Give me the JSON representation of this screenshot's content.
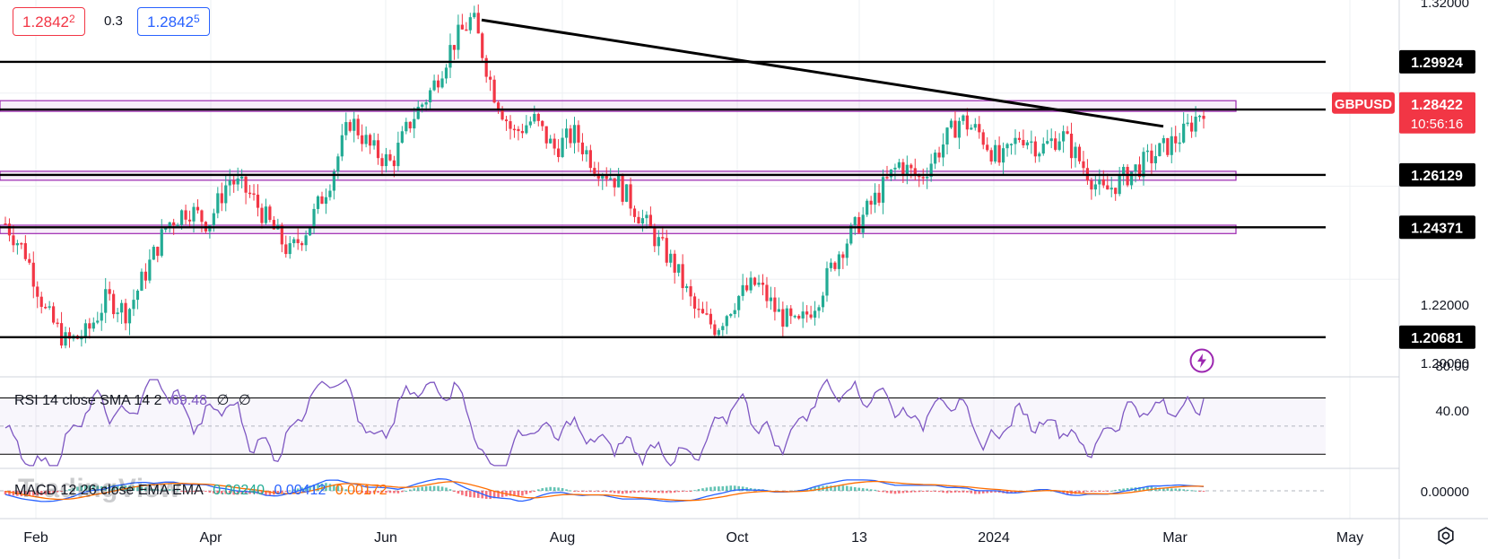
{
  "quote": {
    "bid": "1.2842",
    "bid_sup": "2",
    "spread": "0.3",
    "ask": "1.2842",
    "ask_sup": "5"
  },
  "symbol": {
    "name": "GBPUSD",
    "price": "1.28422",
    "countdown": "10:56:16"
  },
  "levels": [
    "1.29924",
    "1.28323",
    "1.26129",
    "1.24371",
    "1.20681"
  ],
  "rsi_legend": {
    "name": "RSI 14 close SMA 14 2",
    "value": "69.48",
    "extra1": "∅",
    "extra2": "∅"
  },
  "macd_legend": {
    "name": "MACD 12 26 close EMA EMA",
    "hist": "0.00240",
    "macd": "0.00412",
    "signal": "0.00172"
  },
  "watermark": "TradingView",
  "price_scale_ticks": [
    "1.32000",
    "1.22000",
    "1.20000"
  ],
  "rsi_scale_ticks": [
    "80.00",
    "40.00"
  ],
  "macd_scale_ticks": [
    "0.00000"
  ],
  "time_axis": [
    "Feb",
    "Apr",
    "Jun",
    "Aug",
    "Oct",
    "13",
    "2024",
    "Mar",
    "May"
  ],
  "colors": {
    "up": "#22ab94",
    "down": "#f23645",
    "rsi": "#7e57c2",
    "macd": "#2962ff",
    "signal": "#ff6d00",
    "zone": "#9c27b0",
    "label_red": "#f23645"
  },
  "chart_data": {
    "type": "candlestick",
    "symbol": "GBPUSD",
    "xlabels": [
      "Feb",
      "Apr",
      "Jun",
      "Aug",
      "Oct",
      "13",
      "2024",
      "Mar",
      "May"
    ],
    "ylim": [
      1.195,
      1.32
    ],
    "horizontal_levels": [
      1.29924,
      1.28323,
      1.26129,
      1.24371,
      1.20681
    ],
    "trendline": {
      "from": 1.3142,
      "to": 1.28
    },
    "price_path": [
      1.245,
      1.235,
      1.215,
      1.205,
      1.208,
      1.22,
      1.215,
      1.23,
      1.245,
      1.25,
      1.245,
      1.26,
      1.255,
      1.245,
      1.235,
      1.245,
      1.26,
      1.28,
      1.27,
      1.265,
      1.28,
      1.29,
      1.305,
      1.3142,
      1.29,
      1.275,
      1.28,
      1.27,
      1.275,
      1.265,
      1.26,
      1.25,
      1.24,
      1.23,
      1.215,
      1.21,
      1.22,
      1.225,
      1.215,
      1.21,
      1.22,
      1.235,
      1.245,
      1.255,
      1.265,
      1.26,
      1.27,
      1.28,
      1.275,
      1.265,
      1.275,
      1.27,
      1.275,
      1.265,
      1.255,
      1.26,
      1.265,
      1.27,
      1.275,
      1.284
    ],
    "rsi": {
      "value": 69.48,
      "ylim": [
        20,
        85
      ]
    },
    "macd": {
      "macd": 0.00412,
      "signal": 0.00172,
      "hist": 0.0024
    }
  }
}
